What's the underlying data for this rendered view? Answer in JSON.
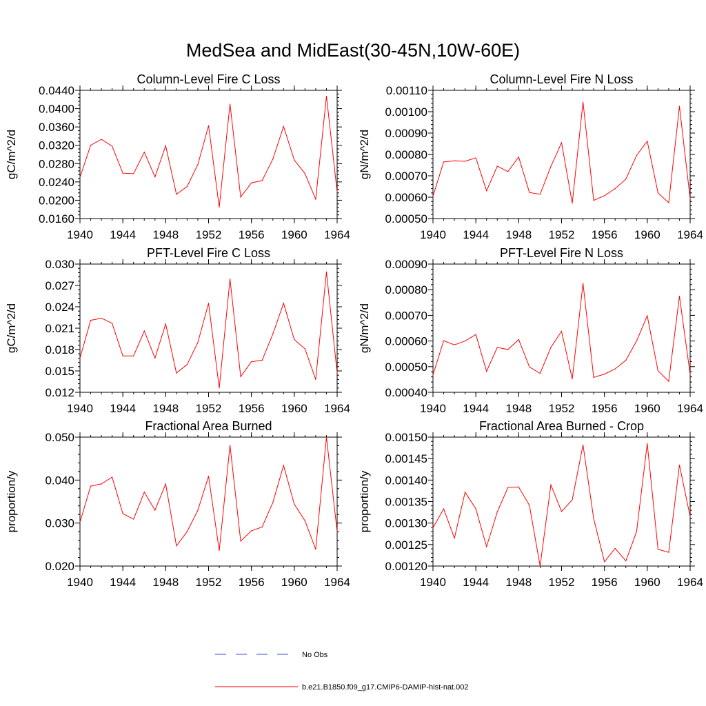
{
  "title": "MedSea and MidEast(30-45N,10W-60E)",
  "legend": [
    {
      "label": "No Obs",
      "color": "#3b4fd8",
      "style": "dashed"
    },
    {
      "label": "b.e21.B1850.f09_g17.CMIP6-DAMIP-hist-nat.002",
      "color": "#ff0000",
      "style": "solid"
    }
  ],
  "chart_data": [
    {
      "type": "line",
      "title": "Column-Level Fire C Loss",
      "ylabel": "gC/m^2/d",
      "xlim": [
        1940,
        1964
      ],
      "ylim": [
        0.016,
        0.044
      ],
      "xticks": [
        1940,
        1944,
        1948,
        1952,
        1956,
        1960,
        1964
      ],
      "yticks": [
        "0.0160",
        "0.0200",
        "0.0240",
        "0.0280",
        "0.0320",
        "0.0360",
        "0.0400",
        "0.0440"
      ],
      "x": [
        1940,
        1941,
        1942,
        1943,
        1944,
        1945,
        1946,
        1947,
        1948,
        1949,
        1950,
        1951,
        1952,
        1953,
        1954,
        1955,
        1956,
        1957,
        1958,
        1959,
        1960,
        1961,
        1962,
        1963,
        1964
      ],
      "series": [
        {
          "name": "b.e21.B1850.f09_g17.CMIP6-DAMIP-hist-nat.002",
          "values": [
            0.025,
            0.032,
            0.0333,
            0.0318,
            0.0259,
            0.0258,
            0.0305,
            0.0251,
            0.0319,
            0.0213,
            0.023,
            0.0278,
            0.0363,
            0.0185,
            0.041,
            0.0207,
            0.0238,
            0.0243,
            0.029,
            0.0361,
            0.0288,
            0.0258,
            0.0202,
            0.0427,
            0.0218
          ]
        }
      ]
    },
    {
      "type": "line",
      "title": "Column-Level Fire N Loss",
      "ylabel": "gN/m^2/d",
      "xlim": [
        1940,
        1964
      ],
      "ylim": [
        0.0005,
        0.0011
      ],
      "xticks": [
        1940,
        1944,
        1948,
        1952,
        1956,
        1960,
        1964
      ],
      "yticks": [
        "0.00050",
        "0.00060",
        "0.00070",
        "0.00080",
        "0.00090",
        "0.00100",
        "0.00110"
      ],
      "x": [
        1940,
        1941,
        1942,
        1943,
        1944,
        1945,
        1946,
        1947,
        1948,
        1949,
        1950,
        1951,
        1952,
        1953,
        1954,
        1955,
        1956,
        1957,
        1958,
        1959,
        1960,
        1961,
        1962,
        1963,
        1964
      ],
      "series": [
        {
          "name": "b.e21.B1850.f09_g17.CMIP6-DAMIP-hist-nat.002",
          "values": [
            0.000605,
            0.000765,
            0.00077,
            0.000768,
            0.000784,
            0.00063,
            0.000745,
            0.00072,
            0.000788,
            0.000622,
            0.000614,
            0.000744,
            0.000855,
            0.000572,
            0.001045,
            0.000585,
            0.000607,
            0.00064,
            0.000685,
            0.000795,
            0.000862,
            0.00062,
            0.000574,
            0.001025,
            0.000593
          ]
        }
      ]
    },
    {
      "type": "line",
      "title": "PFT-Level Fire C Loss",
      "ylabel": "gC/m^2/d",
      "xlim": [
        1940,
        1964
      ],
      "ylim": [
        0.012,
        0.03
      ],
      "xticks": [
        1940,
        1944,
        1948,
        1952,
        1956,
        1960,
        1964
      ],
      "yticks": [
        "0.012",
        "0.015",
        "0.018",
        "0.021",
        "0.024",
        "0.027",
        "0.030"
      ],
      "x": [
        1940,
        1941,
        1942,
        1943,
        1944,
        1945,
        1946,
        1947,
        1948,
        1949,
        1950,
        1951,
        1952,
        1953,
        1954,
        1955,
        1956,
        1957,
        1958,
        1959,
        1960,
        1961,
        1962,
        1963,
        1964
      ],
      "series": [
        {
          "name": "b.e21.B1850.f09_g17.CMIP6-DAMIP-hist-nat.002",
          "values": [
            0.0168,
            0.0221,
            0.0224,
            0.0217,
            0.0171,
            0.0171,
            0.0206,
            0.0168,
            0.0216,
            0.0147,
            0.0159,
            0.019,
            0.0245,
            0.0126,
            0.0279,
            0.0142,
            0.0163,
            0.0165,
            0.0202,
            0.0245,
            0.0194,
            0.0181,
            0.0138,
            0.0289,
            0.0147
          ]
        }
      ]
    },
    {
      "type": "line",
      "title": "PFT-Level Fire N Loss",
      "ylabel": "gN/m^2/d",
      "xlim": [
        1940,
        1964
      ],
      "ylim": [
        0.0004,
        0.0009
      ],
      "xticks": [
        1940,
        1944,
        1948,
        1952,
        1956,
        1960,
        1964
      ],
      "yticks": [
        "0.00040",
        "0.00050",
        "0.00060",
        "0.00070",
        "0.00080",
        "0.00090"
      ],
      "x": [
        1940,
        1941,
        1942,
        1943,
        1944,
        1945,
        1946,
        1947,
        1948,
        1949,
        1950,
        1951,
        1952,
        1953,
        1954,
        1955,
        1956,
        1957,
        1958,
        1959,
        1960,
        1961,
        1962,
        1963,
        1964
      ],
      "series": [
        {
          "name": "b.e21.B1850.f09_g17.CMIP6-DAMIP-hist-nat.002",
          "values": [
            0.000468,
            0.000601,
            0.000585,
            0.0006,
            0.000625,
            0.000482,
            0.000575,
            0.000567,
            0.000606,
            0.000499,
            0.000474,
            0.000575,
            0.000638,
            0.000452,
            0.000825,
            0.000458,
            0.000471,
            0.000491,
            0.000525,
            0.0006,
            0.000698,
            0.000484,
            0.000443,
            0.000775,
            0.00047
          ]
        }
      ]
    },
    {
      "type": "line",
      "title": "Fractional Area Burned",
      "ylabel": "proportion/y",
      "xlim": [
        1940,
        1964
      ],
      "ylim": [
        0.02,
        0.05
      ],
      "xticks": [
        1940,
        1944,
        1948,
        1952,
        1956,
        1960,
        1964
      ],
      "yticks": [
        "0.020",
        "0.030",
        "0.040",
        "0.050"
      ],
      "x": [
        1940,
        1941,
        1942,
        1943,
        1944,
        1945,
        1946,
        1947,
        1948,
        1949,
        1950,
        1951,
        1952,
        1953,
        1954,
        1955,
        1956,
        1957,
        1958,
        1959,
        1960,
        1961,
        1962,
        1963,
        1964
      ],
      "series": [
        {
          "name": "b.e21.B1850.f09_g17.CMIP6-DAMIP-hist-nat.002",
          "values": [
            0.0302,
            0.0386,
            0.0391,
            0.0407,
            0.0322,
            0.0309,
            0.0372,
            0.033,
            0.0391,
            0.0247,
            0.028,
            0.033,
            0.0409,
            0.0236,
            0.0481,
            0.0258,
            0.0282,
            0.0291,
            0.0348,
            0.0434,
            0.0344,
            0.0305,
            0.0239,
            0.05,
            0.028
          ]
        }
      ]
    },
    {
      "type": "line",
      "title": "Fractional Area Burned - Crop",
      "ylabel": "proportion/y",
      "xlim": [
        1940,
        1964
      ],
      "ylim": [
        0.0012,
        0.0015
      ],
      "xticks": [
        1940,
        1944,
        1948,
        1952,
        1956,
        1960,
        1964
      ],
      "yticks": [
        "0.00120",
        "0.00125",
        "0.00130",
        "0.00135",
        "0.00140",
        "0.00145",
        "0.00150"
      ],
      "x": [
        1940,
        1941,
        1942,
        1943,
        1944,
        1945,
        1946,
        1947,
        1948,
        1949,
        1950,
        1951,
        1952,
        1953,
        1954,
        1955,
        1956,
        1957,
        1958,
        1959,
        1960,
        1961,
        1962,
        1963,
        1964
      ],
      "series": [
        {
          "name": "b.e21.B1850.f09_g17.CMIP6-DAMIP-hist-nat.002",
          "values": [
            0.001289,
            0.001333,
            0.001265,
            0.001372,
            0.001333,
            0.001245,
            0.001326,
            0.001383,
            0.001384,
            0.001341,
            0.0012,
            0.001389,
            0.001327,
            0.001354,
            0.001482,
            0.00131,
            0.00121,
            0.001241,
            0.001212,
            0.00128,
            0.001485,
            0.001239,
            0.001232,
            0.001435,
            0.001315
          ]
        }
      ]
    }
  ]
}
